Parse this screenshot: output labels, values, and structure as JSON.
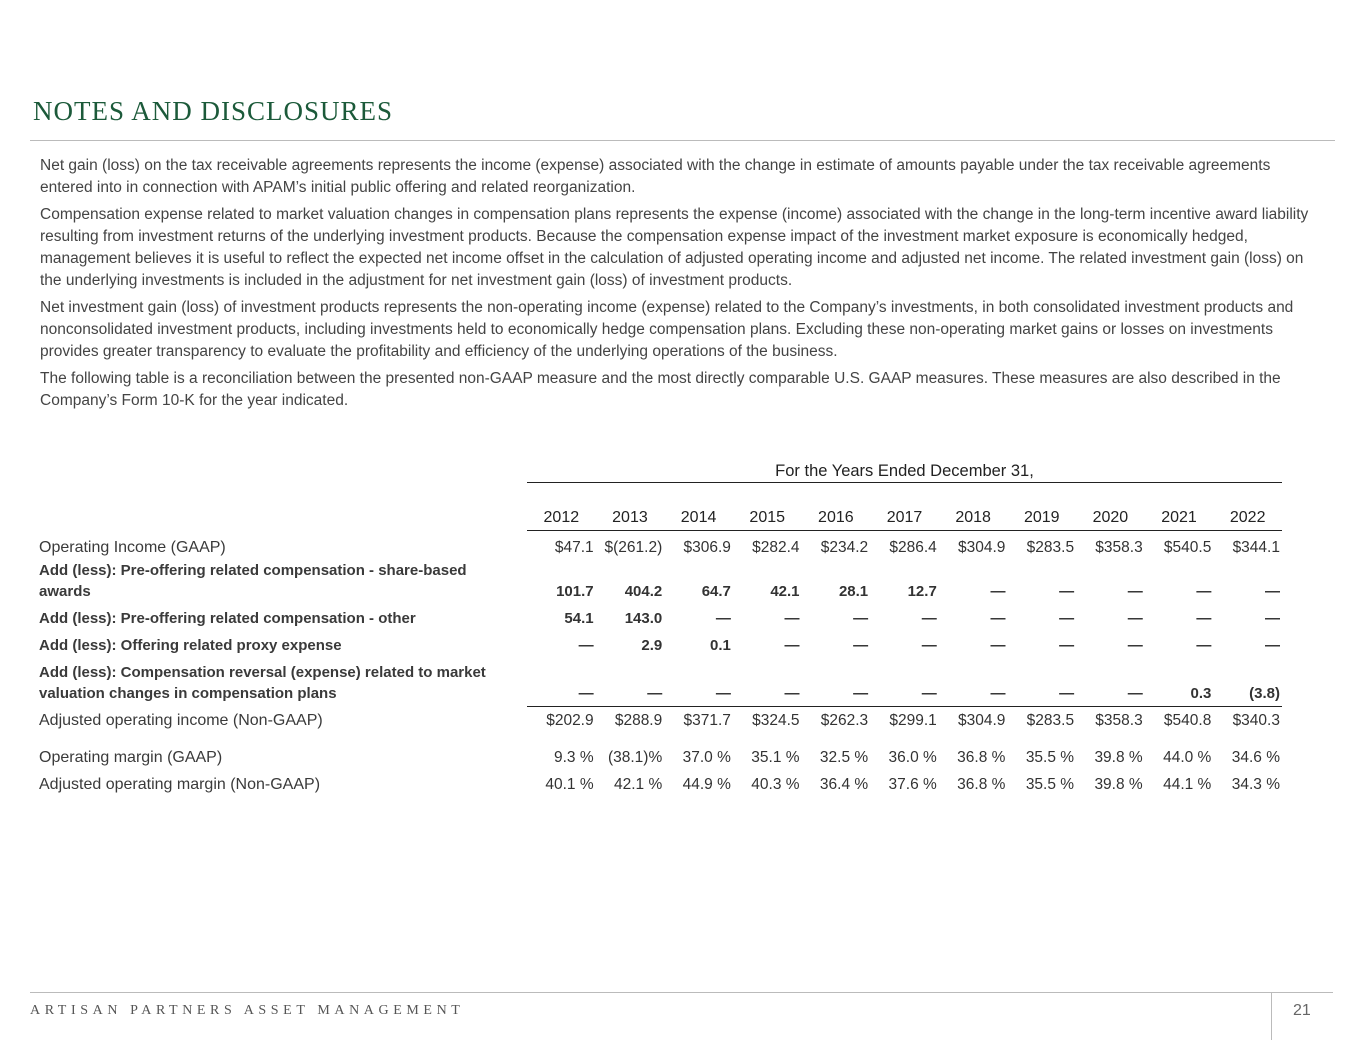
{
  "header": {
    "title": "NOTES AND DISCLOSURES"
  },
  "paragraphs": [
    "Net gain (loss) on the tax receivable agreements represents the income (expense) associated with the change in estimate of amounts payable under the tax receivable agreements entered into in connection with APAM’s initial public offering and related reorganization.",
    "Compensation expense related to market valuation changes in compensation plans represents the expense (income) associated with the change in the long-term incentive award liability resulting from investment returns of the underlying investment products. Because the compensation expense impact of the investment market exposure is economically hedged, management believes it is useful to reflect the expected net income offset in the calculation of adjusted operating income and adjusted net income. The related investment gain (loss) on the underlying investments is included in the adjustment for net investment gain (loss) of investment products.",
    "Net investment gain (loss) of investment products represents the non-operating income (expense) related to the Company’s investments, in both consolidated investment products and nonconsolidated investment products, including investments held to economically hedge compensation plans. Excluding these non-operating market gains or losses on investments provides greater transparency to evaluate the profitability and efficiency of the underlying operations of the business.",
    "The following table is a reconciliation between the presented non-GAAP measure and the most directly comparable U.S. GAAP measures. These measures are also described in the Company’s Form 10-K for the year indicated."
  ],
  "table": {
    "caption": "For the Years Ended December 31,",
    "columns": [
      "2012",
      "2013",
      "2014",
      "2015",
      "2016",
      "2017",
      "2018",
      "2019",
      "2020",
      "2021",
      "2022"
    ],
    "rows": [
      {
        "label": "Operating Income (GAAP)",
        "cells": [
          "$47.1",
          "$(261.2)",
          "$306.9",
          "$282.4",
          "$234.2",
          "$286.4",
          "$304.9",
          "$283.5",
          "$358.3",
          "$540.5",
          "$344.1"
        ]
      },
      {
        "label": "Add (less): Pre-offering related compensation - share-based awards",
        "cells": [
          "101.7",
          "404.2",
          "64.7",
          "42.1",
          "28.1",
          "12.7",
          "—",
          "—",
          "—",
          "—",
          "—"
        ]
      },
      {
        "label": "Add (less): Pre-offering related compensation - other",
        "cells": [
          "54.1",
          "143.0",
          "—",
          "—",
          "—",
          "—",
          "—",
          "—",
          "—",
          "—",
          "—"
        ]
      },
      {
        "label": "Add (less): Offering related proxy expense",
        "cells": [
          "—",
          "2.9",
          "0.1",
          "—",
          "—",
          "—",
          "—",
          "—",
          "—",
          "—",
          "—"
        ]
      },
      {
        "label": "Add (less): Compensation reversal (expense) related to market valuation changes in compensation plans",
        "cells": [
          "—",
          "—",
          "—",
          "—",
          "—",
          "—",
          "—",
          "—",
          "—",
          "0.3",
          "(3.8)"
        ]
      },
      {
        "label": "Adjusted operating income (Non-GAAP)",
        "cells": [
          "$202.9",
          "$288.9",
          "$371.7",
          "$324.5",
          "$262.3",
          "$299.1",
          "$304.9",
          "$283.5",
          "$358.3",
          "$540.8",
          "$340.3"
        ]
      },
      {
        "label": "Operating margin (GAAP)",
        "cells": [
          "9.3 %",
          "(38.1)%",
          "37.0 %",
          "35.1 %",
          "32.5 %",
          "36.0 %",
          "36.8 %",
          "35.5 %",
          "39.8 %",
          "44.0 %",
          "34.6 %"
        ]
      },
      {
        "label": "Adjusted operating margin (Non-GAAP)",
        "cells": [
          "40.1 %",
          "42.1 %",
          "44.9 %",
          "40.3 %",
          "36.4 %",
          "37.6 %",
          "36.8 %",
          "35.5 %",
          "39.8 %",
          "44.1 %",
          "34.3 %"
        ]
      }
    ]
  },
  "footer": {
    "company": "ARTISAN PARTNERS ASSET MANAGEMENT",
    "page": "21"
  }
}
